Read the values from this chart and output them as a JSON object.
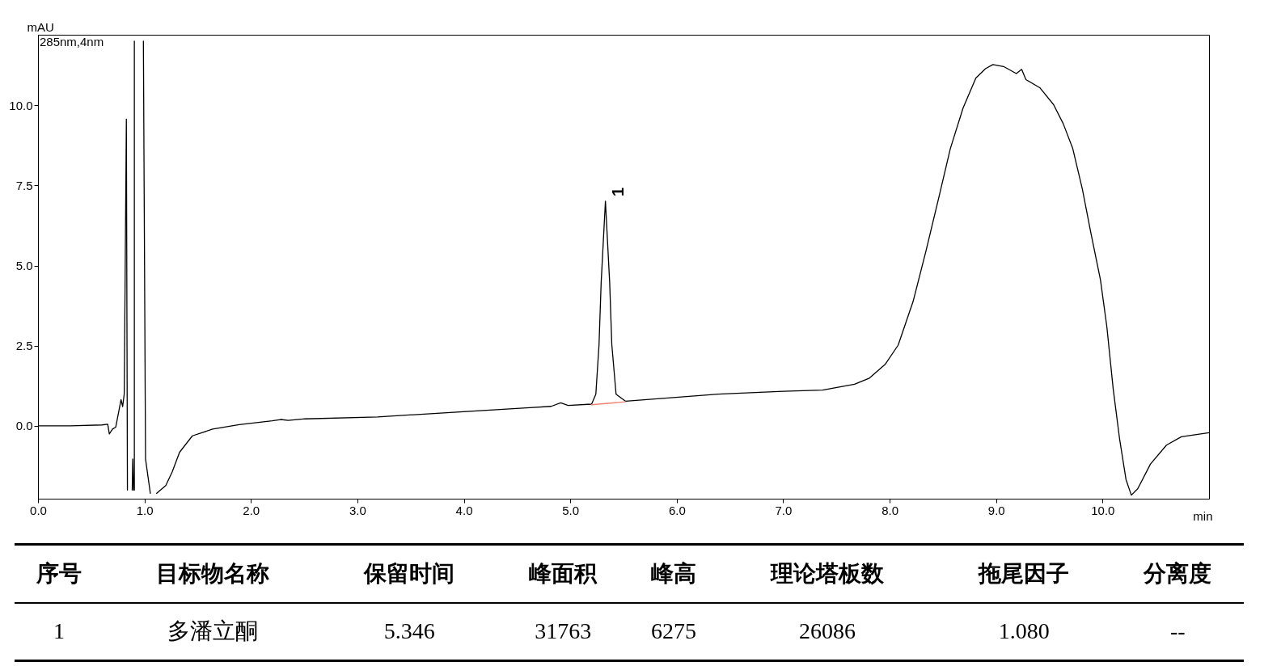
{
  "chart_data": {
    "type": "line",
    "ylabel": "mAU",
    "xlabel": "min",
    "xlim": [
      0,
      11
    ],
    "ylim": [
      -2.27,
      12.2
    ],
    "xticks": [
      {
        "value": 0,
        "label": "0.0"
      },
      {
        "value": 1,
        "label": "1.0"
      },
      {
        "value": 2,
        "label": "2.0"
      },
      {
        "value": 3,
        "label": "3.0"
      },
      {
        "value": 4,
        "label": "4.0"
      },
      {
        "value": 5,
        "label": "5.0"
      },
      {
        "value": 6,
        "label": "6.0"
      },
      {
        "value": 7,
        "label": "7.0"
      },
      {
        "value": 8,
        "label": "8.0"
      },
      {
        "value": 9,
        "label": "9.0"
      },
      {
        "value": 10,
        "label": "10.0"
      }
    ],
    "yticks": [
      {
        "value": 0,
        "label": "0.0"
      },
      2.5,
      {
        "value": 5,
        "label": "5.0"
      },
      7.5,
      {
        "value": 10,
        "label": "10.0"
      }
    ],
    "annotations": [
      "285nm,4nm",
      {
        "text": "1",
        "x": 5.346,
        "y": 7.01
      },
      "序号",
      "目标物名称",
      "保留时间",
      "峰面积",
      "峰高",
      "理论塔板数",
      "拖尾因子",
      "分离度",
      "1",
      "多潘立酮",
      "5.346",
      "31763",
      "6275",
      "26086",
      "1.080",
      "--"
    ],
    "series": [
      {
        "color": "#000000",
        "x": [
          0,
          0.3,
          0.6,
          0.655,
          0.67,
          0.7,
          0.73,
          0.78,
          0.795,
          0.81,
          0.83,
          0.84,
          0.86,
          0.885,
          0.89,
          0.898,
          0.9,
          0.905,
          0.905,
          0.95,
          0.99,
          1.01,
          1.055,
          1.08,
          1.115,
          1.2,
          1.26,
          1.33,
          1.45,
          1.64,
          1.89,
          2.2,
          2.28,
          2.35,
          2.51,
          3.19,
          4.62,
          4.82,
          4.91,
          4.98,
          5.2,
          5.24,
          5.27,
          5.29,
          5.33,
          5.37,
          5.39,
          5.43,
          5.52,
          6.39,
          7.0,
          7.37,
          7.67,
          7.81,
          7.96,
          8.08,
          8.22,
          8.34,
          8.46,
          8.57,
          8.69,
          8.81,
          8.9,
          8.97,
          9.07,
          9.19,
          9.24,
          9.28,
          9.41,
          9.54,
          9.63,
          9.72,
          9.81,
          9.89,
          9.98,
          10.04,
          10.1,
          10.16,
          10.22,
          10.27,
          10.33,
          10.45,
          10.6,
          10.74,
          11.0
        ],
        "values": [
          0,
          0,
          0.03,
          0.05,
          -0.25,
          -0.1,
          -0.04,
          0.82,
          0.6,
          1.0,
          9.57,
          -2.0,
          null,
          -2.0,
          -1.03,
          -2.0,
          null,
          -2.0,
          12.0,
          null,
          12.0,
          -1.03,
          -2.1,
          null,
          -2.1,
          -1.86,
          -1.44,
          -0.82,
          -0.31,
          -0.1,
          0.04,
          0.16,
          0.2,
          0.17,
          0.22,
          0.28,
          0.57,
          0.61,
          0.72,
          0.64,
          0.68,
          0.99,
          2.54,
          4.47,
          7.01,
          4.47,
          2.54,
          0.99,
          0.77,
          0.99,
          1.08,
          1.12,
          1.3,
          1.49,
          1.93,
          2.52,
          3.88,
          5.44,
          7.1,
          8.65,
          9.92,
          10.85,
          11.14,
          11.27,
          11.21,
          10.99,
          11.12,
          10.8,
          10.55,
          10.02,
          9.43,
          8.65,
          7.39,
          6.02,
          4.56,
          3.1,
          1.15,
          -0.41,
          -1.67,
          -2.16,
          -1.96,
          -1.19,
          -0.6,
          -0.34,
          -0.21
        ]
      },
      {
        "color": "#f08070",
        "x": [
          5.2,
          5.52
        ],
        "values": [
          0.66,
          0.75
        ]
      }
    ]
  }
}
